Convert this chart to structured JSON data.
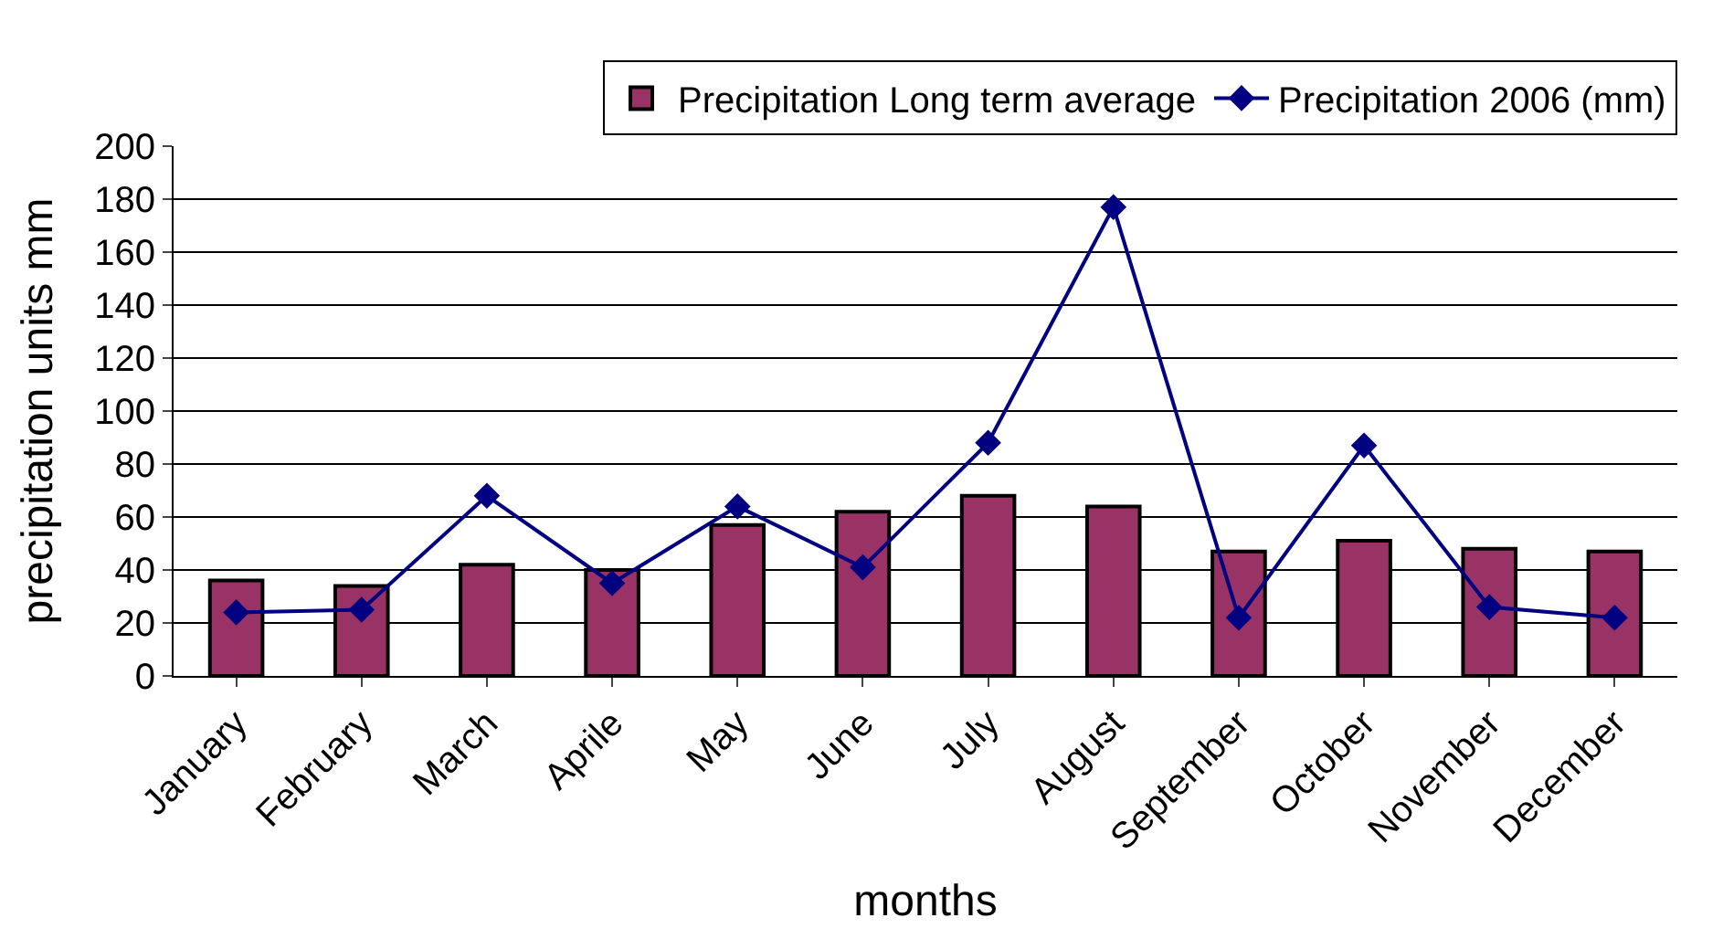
{
  "chart_data": {
    "type": "bar",
    "xlabel": "months",
    "ylabel": "precipitation units mm",
    "categories": [
      "January",
      "February",
      "March",
      "Aprile",
      "May",
      "June",
      "July",
      "August",
      "September",
      "October",
      "November",
      "December"
    ],
    "series": [
      {
        "name": "Precipitation Long term average",
        "color": "#993366",
        "values": [
          36,
          34,
          42,
          40,
          57,
          62,
          68,
          64,
          47,
          51,
          48,
          47
        ]
      },
      {
        "name": "Precipitation 2006 (mm)",
        "type": "line",
        "color": "#000080",
        "marker": "diamond",
        "values": [
          24,
          25,
          68,
          35,
          64,
          41,
          88,
          177,
          22,
          87,
          26,
          22
        ]
      }
    ],
    "ylim": [
      0,
      200
    ],
    "yticks": [
      0,
      20,
      40,
      60,
      80,
      100,
      120,
      140,
      160,
      180,
      200
    ],
    "grid": "y",
    "legend": "top right"
  }
}
